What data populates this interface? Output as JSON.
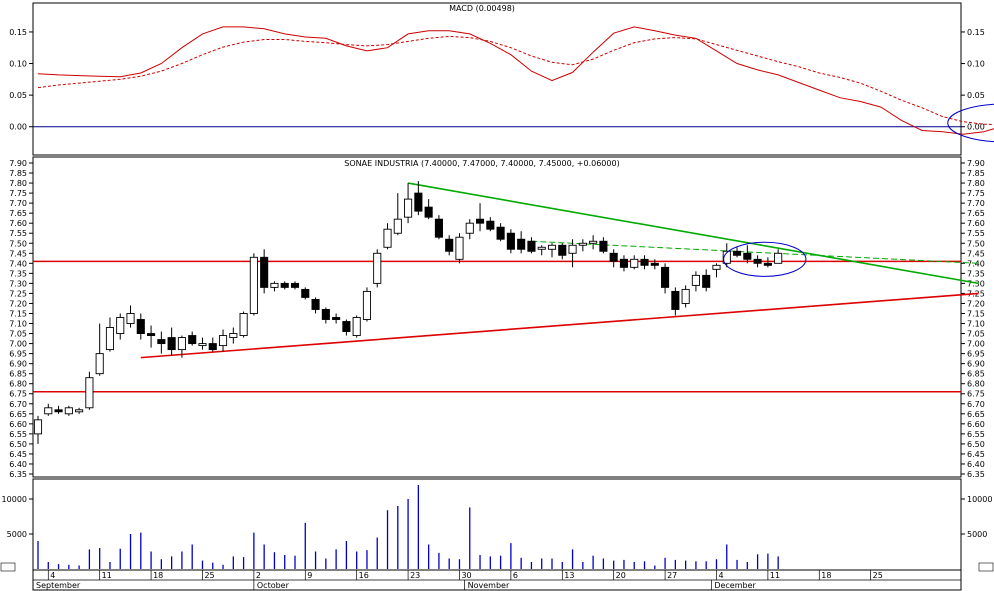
{
  "chart_data": [
    {
      "panel": "macd",
      "type": "line",
      "title": "MACD (0.00498)",
      "ylim": [
        -0.04,
        0.18
      ],
      "yticks": [
        0.0,
        0.05,
        0.1,
        0.15
      ],
      "ytick_labels": [
        "0.00",
        "0.05",
        "0.10",
        "0.15"
      ],
      "series": [
        {
          "style": "solid",
          "color": "#cc0000",
          "x": [
            0,
            2,
            4,
            6,
            8,
            10,
            12,
            14,
            16,
            18,
            20,
            22,
            24,
            26,
            28,
            30,
            32,
            34,
            36,
            38,
            40,
            42,
            44,
            46,
            48,
            50,
            52,
            54,
            56,
            58,
            60,
            62,
            64,
            66,
            68,
            70,
            72,
            74,
            76,
            78,
            80,
            82,
            84,
            86,
            88,
            90,
            92,
            94,
            96,
            98
          ],
          "values": [
            0.084,
            0.082,
            0.081,
            0.08,
            0.079,
            0.085,
            0.1,
            0.125,
            0.147,
            0.158,
            0.158,
            0.155,
            0.147,
            0.142,
            0.14,
            0.128,
            0.12,
            0.125,
            0.147,
            0.152,
            0.152,
            0.147,
            0.132,
            0.114,
            0.088,
            0.073,
            0.086,
            0.118,
            0.148,
            0.158,
            0.152,
            0.145,
            0.14,
            0.12,
            0.1,
            0.09,
            0.082,
            0.07,
            0.058,
            0.046,
            0.04,
            0.031,
            0.01,
            -0.006,
            -0.008,
            -0.012,
            -0.008,
            0.002,
            0.004,
            0.005
          ]
        },
        {
          "style": "dashed",
          "color": "#cc0000",
          "x": [
            0,
            2,
            4,
            6,
            8,
            10,
            12,
            14,
            16,
            18,
            20,
            22,
            24,
            26,
            28,
            30,
            32,
            34,
            36,
            38,
            40,
            42,
            44,
            46,
            48,
            50,
            52,
            54,
            56,
            58,
            60,
            62,
            64,
            66,
            68,
            70,
            72,
            74,
            76,
            78,
            80,
            82,
            84,
            86,
            88,
            90,
            92,
            94,
            96,
            98
          ],
          "values": [
            0.062,
            0.066,
            0.069,
            0.072,
            0.075,
            0.08,
            0.088,
            0.1,
            0.114,
            0.126,
            0.134,
            0.138,
            0.138,
            0.135,
            0.133,
            0.13,
            0.128,
            0.13,
            0.135,
            0.14,
            0.143,
            0.141,
            0.135,
            0.125,
            0.112,
            0.102,
            0.098,
            0.107,
            0.121,
            0.133,
            0.139,
            0.141,
            0.139,
            0.13,
            0.121,
            0.112,
            0.103,
            0.095,
            0.085,
            0.078,
            0.069,
            0.056,
            0.042,
            0.03,
            0.016,
            0.008,
            0.004,
            0.003,
            0.004,
            0.005
          ]
        }
      ],
      "hlines": [
        {
          "y": 0.0,
          "color": "#00008b"
        }
      ],
      "ellipses": [
        {
          "cx": 94,
          "cy": 0.006,
          "rx": 5.5,
          "ry": 0.03,
          "color": "#0000cc"
        }
      ]
    },
    {
      "panel": "price",
      "type": "candlestick",
      "title": "SONAE INDUSTRIA (7.40000, 7.47000, 7.40000, 7.45000, +0.06000)",
      "ylim": [
        6.35,
        7.9
      ],
      "ytick_min": 6.35,
      "ytick_max": 7.9,
      "ytick_step": 0.05,
      "candles": [
        {
          "x": 0,
          "o": 6.55,
          "h": 6.64,
          "l": 6.5,
          "c": 6.62
        },
        {
          "x": 1,
          "o": 6.65,
          "h": 6.7,
          "l": 6.64,
          "c": 6.68
        },
        {
          "x": 2,
          "o": 6.67,
          "h": 6.69,
          "l": 6.65,
          "c": 6.66
        },
        {
          "x": 3,
          "o": 6.65,
          "h": 6.69,
          "l": 6.64,
          "c": 6.68
        },
        {
          "x": 4,
          "o": 6.66,
          "h": 6.68,
          "l": 6.65,
          "c": 6.67
        },
        {
          "x": 5,
          "o": 6.68,
          "h": 6.86,
          "l": 6.67,
          "c": 6.83
        },
        {
          "x": 6,
          "o": 6.85,
          "h": 7.1,
          "l": 6.84,
          "c": 6.95
        },
        {
          "x": 7,
          "o": 6.97,
          "h": 7.13,
          "l": 6.96,
          "c": 7.08
        },
        {
          "x": 8,
          "o": 7.05,
          "h": 7.15,
          "l": 7.02,
          "c": 7.13
        },
        {
          "x": 9,
          "o": 7.1,
          "h": 7.19,
          "l": 7.08,
          "c": 7.15
        },
        {
          "x": 10,
          "o": 7.12,
          "h": 7.15,
          "l": 7.02,
          "c": 7.05
        },
        {
          "x": 11,
          "o": 7.05,
          "h": 7.09,
          "l": 6.98,
          "c": 7.04
        },
        {
          "x": 12,
          "o": 7.02,
          "h": 7.06,
          "l": 6.95,
          "c": 7.0
        },
        {
          "x": 13,
          "o": 7.03,
          "h": 7.08,
          "l": 6.94,
          "c": 6.97
        },
        {
          "x": 14,
          "o": 6.97,
          "h": 7.04,
          "l": 6.93,
          "c": 7.03
        },
        {
          "x": 15,
          "o": 7.04,
          "h": 7.06,
          "l": 6.99,
          "c": 7.0
        },
        {
          "x": 16,
          "o": 6.99,
          "h": 7.03,
          "l": 6.97,
          "c": 7.0
        },
        {
          "x": 17,
          "o": 7.0,
          "h": 7.03,
          "l": 6.96,
          "c": 6.97
        },
        {
          "x": 18,
          "o": 6.99,
          "h": 7.07,
          "l": 6.96,
          "c": 7.04
        },
        {
          "x": 19,
          "o": 7.03,
          "h": 7.08,
          "l": 7.0,
          "c": 7.05
        },
        {
          "x": 20,
          "o": 7.04,
          "h": 7.16,
          "l": 7.03,
          "c": 7.15
        },
        {
          "x": 21,
          "o": 7.15,
          "h": 7.45,
          "l": 7.14,
          "c": 7.43
        },
        {
          "x": 22,
          "o": 7.43,
          "h": 7.47,
          "l": 7.25,
          "c": 7.28
        },
        {
          "x": 23,
          "o": 7.28,
          "h": 7.31,
          "l": 7.26,
          "c": 7.3
        },
        {
          "x": 24,
          "o": 7.3,
          "h": 7.31,
          "l": 7.27,
          "c": 7.28
        },
        {
          "x": 25,
          "o": 7.3,
          "h": 7.31,
          "l": 7.27,
          "c": 7.28
        },
        {
          "x": 26,
          "o": 7.27,
          "h": 7.28,
          "l": 7.22,
          "c": 7.23
        },
        {
          "x": 27,
          "o": 7.22,
          "h": 7.23,
          "l": 7.15,
          "c": 7.17
        },
        {
          "x": 28,
          "o": 7.17,
          "h": 7.18,
          "l": 7.1,
          "c": 7.12
        },
        {
          "x": 29,
          "o": 7.13,
          "h": 7.15,
          "l": 7.1,
          "c": 7.12
        },
        {
          "x": 30,
          "o": 7.11,
          "h": 7.12,
          "l": 7.04,
          "c": 7.06
        },
        {
          "x": 31,
          "o": 7.04,
          "h": 7.14,
          "l": 7.03,
          "c": 7.13
        },
        {
          "x": 32,
          "o": 7.12,
          "h": 7.28,
          "l": 7.11,
          "c": 7.26
        },
        {
          "x": 33,
          "o": 7.3,
          "h": 7.47,
          "l": 7.28,
          "c": 7.45
        },
        {
          "x": 34,
          "o": 7.48,
          "h": 7.6,
          "l": 7.47,
          "c": 7.57
        },
        {
          "x": 35,
          "o": 7.55,
          "h": 7.75,
          "l": 7.54,
          "c": 7.62
        },
        {
          "x": 36,
          "o": 7.63,
          "h": 7.8,
          "l": 7.6,
          "c": 7.72
        },
        {
          "x": 37,
          "o": 7.75,
          "h": 7.81,
          "l": 7.64,
          "c": 7.66
        },
        {
          "x": 38,
          "o": 7.68,
          "h": 7.72,
          "l": 7.62,
          "c": 7.63
        },
        {
          "x": 39,
          "o": 7.62,
          "h": 7.64,
          "l": 7.52,
          "c": 7.53
        },
        {
          "x": 40,
          "o": 7.52,
          "h": 7.54,
          "l": 7.44,
          "c": 7.46
        },
        {
          "x": 41,
          "o": 7.42,
          "h": 7.55,
          "l": 7.4,
          "c": 7.53
        },
        {
          "x": 42,
          "o": 7.55,
          "h": 7.62,
          "l": 7.52,
          "c": 7.6
        },
        {
          "x": 43,
          "o": 7.62,
          "h": 7.7,
          "l": 7.56,
          "c": 7.6
        },
        {
          "x": 44,
          "o": 7.61,
          "h": 7.63,
          "l": 7.56,
          "c": 7.57
        },
        {
          "x": 45,
          "o": 7.58,
          "h": 7.6,
          "l": 7.51,
          "c": 7.52
        },
        {
          "x": 46,
          "o": 7.55,
          "h": 7.57,
          "l": 7.45,
          "c": 7.47
        },
        {
          "x": 47,
          "o": 7.52,
          "h": 7.56,
          "l": 7.45,
          "c": 7.47
        },
        {
          "x": 48,
          "o": 7.51,
          "h": 7.53,
          "l": 7.45,
          "c": 7.46
        },
        {
          "x": 49,
          "o": 7.47,
          "h": 7.49,
          "l": 7.44,
          "c": 7.48
        },
        {
          "x": 50,
          "o": 7.47,
          "h": 7.5,
          "l": 7.43,
          "c": 7.49
        },
        {
          "x": 51,
          "o": 7.49,
          "h": 7.5,
          "l": 7.42,
          "c": 7.44
        },
        {
          "x": 52,
          "o": 7.45,
          "h": 7.52,
          "l": 7.38,
          "c": 7.49
        },
        {
          "x": 53,
          "o": 7.49,
          "h": 7.52,
          "l": 7.46,
          "c": 7.5
        },
        {
          "x": 54,
          "o": 7.5,
          "h": 7.54,
          "l": 7.47,
          "c": 7.51
        },
        {
          "x": 55,
          "o": 7.51,
          "h": 7.53,
          "l": 7.45,
          "c": 7.46
        },
        {
          "x": 56,
          "o": 7.45,
          "h": 7.47,
          "l": 7.38,
          "c": 7.41
        },
        {
          "x": 57,
          "o": 7.42,
          "h": 7.44,
          "l": 7.36,
          "c": 7.38
        },
        {
          "x": 58,
          "o": 7.38,
          "h": 7.44,
          "l": 7.37,
          "c": 7.42
        },
        {
          "x": 59,
          "o": 7.42,
          "h": 7.44,
          "l": 7.37,
          "c": 7.39
        },
        {
          "x": 60,
          "o": 7.4,
          "h": 7.42,
          "l": 7.37,
          "c": 7.39
        },
        {
          "x": 61,
          "o": 7.38,
          "h": 7.4,
          "l": 7.25,
          "c": 7.28
        },
        {
          "x": 62,
          "o": 7.26,
          "h": 7.28,
          "l": 7.14,
          "c": 7.17
        },
        {
          "x": 63,
          "o": 7.2,
          "h": 7.29,
          "l": 7.18,
          "c": 7.27
        },
        {
          "x": 64,
          "o": 7.29,
          "h": 7.36,
          "l": 7.26,
          "c": 7.34
        },
        {
          "x": 65,
          "o": 7.34,
          "h": 7.37,
          "l": 7.26,
          "c": 7.28
        },
        {
          "x": 66,
          "o": 7.37,
          "h": 7.4,
          "l": 7.33,
          "c": 7.39
        },
        {
          "x": 67,
          "o": 7.4,
          "h": 7.5,
          "l": 7.38,
          "c": 7.46
        },
        {
          "x": 68,
          "o": 7.46,
          "h": 7.48,
          "l": 7.43,
          "c": 7.44
        },
        {
          "x": 69,
          "o": 7.45,
          "h": 7.49,
          "l": 7.4,
          "c": 7.42
        },
        {
          "x": 70,
          "o": 7.42,
          "h": 7.44,
          "l": 7.38,
          "c": 7.4
        },
        {
          "x": 71,
          "o": 7.4,
          "h": 7.43,
          "l": 7.38,
          "c": 7.39
        },
        {
          "x": 72,
          "o": 7.4,
          "h": 7.47,
          "l": 7.4,
          "c": 7.45
        }
      ],
      "trendlines": [
        {
          "x1": 36,
          "y1": 7.8,
          "x2": 91.5,
          "y2": 7.3,
          "color": "#00aa00",
          "style": "solid"
        },
        {
          "x1": 48,
          "y1": 7.51,
          "x2": 91.5,
          "y2": 7.4,
          "color": "#00aa00",
          "style": "dashed"
        },
        {
          "x1": 10,
          "y1": 6.93,
          "x2": 91.5,
          "y2": 7.25,
          "color": "#dd0000",
          "style": "solid"
        }
      ],
      "hlines": [
        {
          "y": 7.41,
          "color": "#dd0000"
        },
        {
          "y": 6.76,
          "color": "#dd0000"
        }
      ],
      "ellipses": [
        {
          "cx": 70.7,
          "cy": 7.42,
          "rx": 4.0,
          "ry": 0.085,
          "color": "#0000cc"
        }
      ]
    },
    {
      "panel": "volume",
      "type": "bar",
      "ylim": [
        0,
        12000
      ],
      "yticks": [
        5000,
        10000
      ],
      "ytick_labels": [
        "5000",
        "10000"
      ],
      "color": "#0000cc",
      "x": [
        0,
        1,
        2,
        3,
        4,
        5,
        6,
        7,
        8,
        9,
        10,
        11,
        12,
        13,
        14,
        15,
        16,
        17,
        18,
        19,
        20,
        21,
        22,
        23,
        24,
        25,
        26,
        27,
        28,
        29,
        30,
        31,
        32,
        33,
        34,
        35,
        36,
        37,
        38,
        39,
        40,
        41,
        42,
        43,
        44,
        45,
        46,
        47,
        48,
        49,
        50,
        51,
        52,
        53,
        54,
        55,
        56,
        57,
        58,
        59,
        60,
        61,
        62,
        63,
        64,
        65,
        66,
        67,
        68,
        69,
        70,
        71,
        72
      ],
      "values": [
        4000,
        1000,
        700,
        600,
        500,
        2800,
        3000,
        1000,
        2900,
        5000,
        5200,
        2500,
        1400,
        1800,
        2500,
        3500,
        1200,
        900,
        600,
        1800,
        1700,
        5200,
        3500,
        2400,
        2000,
        1900,
        6600,
        2500,
        1500,
        2800,
        4000,
        2500,
        2700,
        4500,
        8400,
        9000,
        10000,
        12000,
        3500,
        2300,
        1500,
        1400,
        8800,
        2000,
        1800,
        1900,
        3700,
        1600,
        1000,
        1500,
        1500,
        1000,
        2800,
        1000,
        1900,
        1500,
        1200,
        1300,
        1000,
        1100,
        500,
        1600,
        1300,
        1200,
        1100,
        1100,
        1400,
        3500,
        1300,
        1000,
        2100,
        2200,
        1800
      ]
    }
  ],
  "x_axis": {
    "day_ticks": [
      {
        "x": 1,
        "label": "4"
      },
      {
        "x": 6,
        "label": "11"
      },
      {
        "x": 11,
        "label": "18"
      },
      {
        "x": 16,
        "label": "25"
      },
      {
        "x": 21,
        "label": "2"
      },
      {
        "x": 26,
        "label": "9"
      },
      {
        "x": 31,
        "label": "16"
      },
      {
        "x": 36,
        "label": "23"
      },
      {
        "x": 41,
        "label": "30"
      },
      {
        "x": 46,
        "label": "6"
      },
      {
        "x": 51,
        "label": "13"
      },
      {
        "x": 56,
        "label": "20"
      },
      {
        "x": 61,
        "label": "27"
      },
      {
        "x": 66,
        "label": "4"
      },
      {
        "x": 71,
        "label": "11"
      },
      {
        "x": 76,
        "label": "18"
      },
      {
        "x": 81,
        "label": "25"
      }
    ],
    "month_ticks": [
      {
        "x": 0,
        "label": "September"
      },
      {
        "x": 21,
        "label": "October"
      },
      {
        "x": 41.5,
        "label": "November"
      },
      {
        "x": 65.5,
        "label": "December"
      }
    ]
  }
}
